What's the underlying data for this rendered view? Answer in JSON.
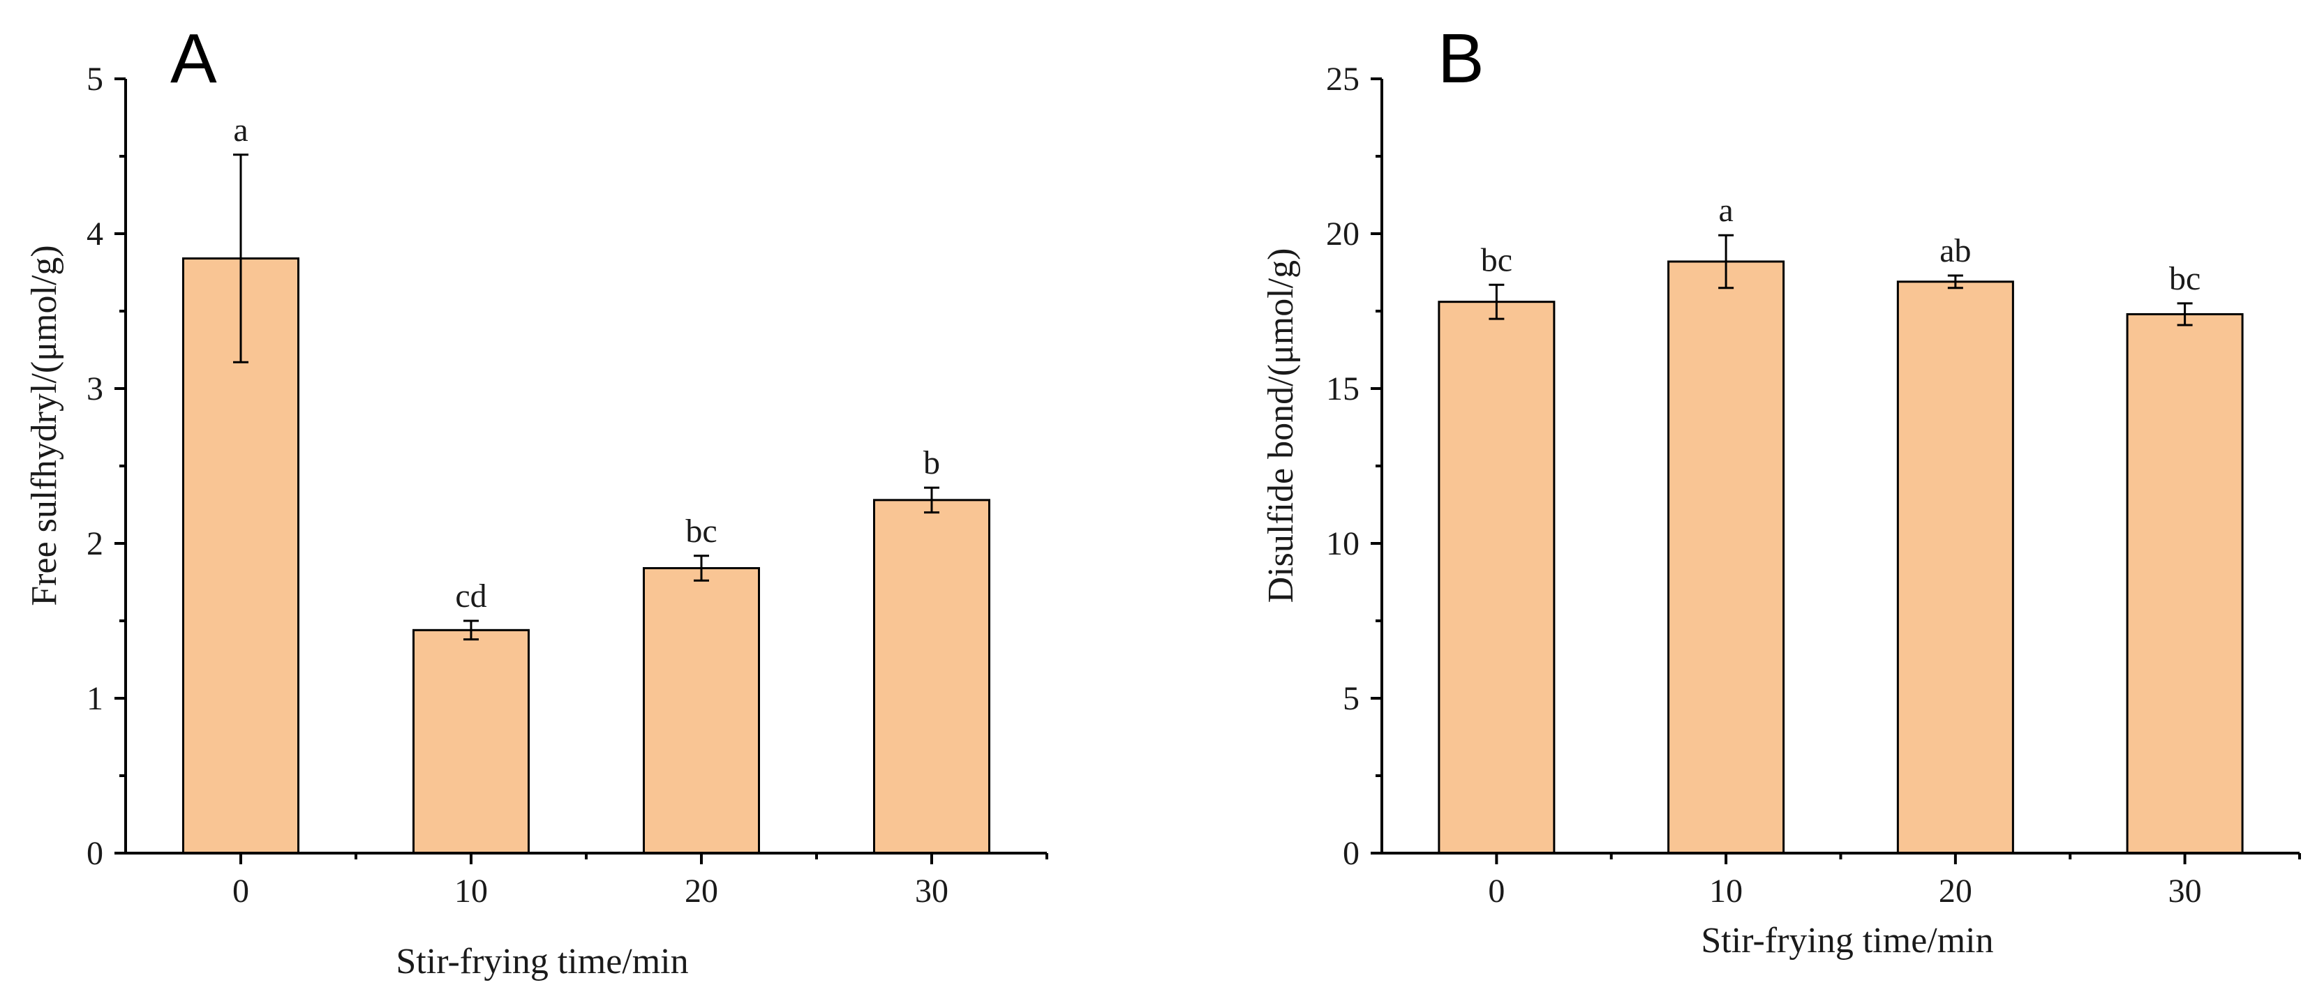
{
  "chart_data": [
    {
      "panel": "A",
      "type": "bar",
      "title": "",
      "xlabel": "Stir-frying time/min",
      "ylabel": "Free sulfhydryl/(μmol/g)",
      "categories": [
        "0",
        "10",
        "20",
        "30"
      ],
      "values": [
        3.84,
        1.44,
        1.84,
        2.28
      ],
      "errors": [
        0.67,
        0.06,
        0.08,
        0.08
      ],
      "significance": [
        "a",
        "cd",
        "bc",
        "b"
      ],
      "ylim": [
        0,
        5
      ],
      "yticks": [
        0,
        1,
        2,
        3,
        4,
        5
      ],
      "ytick_labels": [
        "0",
        "1",
        "2",
        "3",
        "4",
        "5"
      ],
      "bar_color": "#f9c594"
    },
    {
      "panel": "B",
      "type": "bar",
      "title": "",
      "xlabel": "Stir-frying time/min",
      "ylabel": "Disulfide bond/(μmol/g)",
      "categories": [
        "0",
        "10",
        "20",
        "30"
      ],
      "values": [
        17.8,
        19.1,
        18.45,
        17.4
      ],
      "errors": [
        0.55,
        0.85,
        0.2,
        0.35
      ],
      "significance": [
        "bc",
        "a",
        "ab",
        "bc"
      ],
      "ylim": [
        0,
        25
      ],
      "yticks": [
        0,
        5,
        10,
        15,
        20,
        25
      ],
      "ytick_labels": [
        "0",
        "5",
        "10",
        "15",
        "20",
        "25"
      ],
      "bar_color": "#f9c594"
    }
  ]
}
